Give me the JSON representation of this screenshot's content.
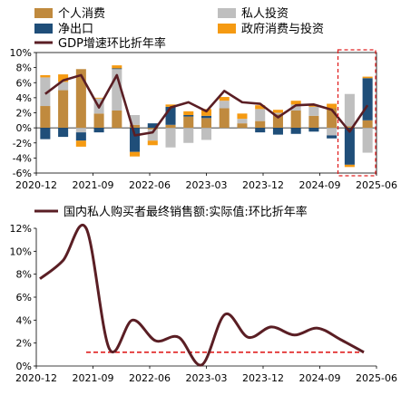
{
  "colors": {
    "consumption": "#C08A3E",
    "private_investment": "#BFBFBF",
    "net_exports": "#1F4E79",
    "government": "#F59A12",
    "gdp_line": "#5A1E24",
    "highlight": "#E02020"
  },
  "chart_data": [
    {
      "type": "bar",
      "stacked": true,
      "legend": [
        {
          "key": "consumption",
          "label": "个人消费"
        },
        {
          "key": "private_investment",
          "label": "私人投资"
        },
        {
          "key": "net_exports",
          "label": "净出口"
        },
        {
          "key": "government",
          "label": "政府消费与投资"
        },
        {
          "key": "gdp",
          "label": "GDP增速环比折年率"
        }
      ],
      "ylim": [
        -6,
        10
      ],
      "yticks": [
        "-6%",
        "-4%",
        "-2%",
        "0%",
        "2%",
        "4%",
        "6%",
        "8%",
        "10%"
      ],
      "xticks": [
        "2020-12",
        "2021-09",
        "2022-06",
        "2023-03",
        "2023-12",
        "2024-09",
        "2025-06"
      ],
      "series": [
        {
          "key": "consumption",
          "values": [
            2.9,
            5.0,
            7.8,
            1.9,
            2.3,
            0.4,
            -0.2,
            0.4,
            1.5,
            1.3,
            2.6,
            0.6,
            0.9,
            1.8,
            2.3,
            1.6,
            2.6,
            0.2,
            1.0
          ]
        },
        {
          "key": "private_investment",
          "values": [
            3.8,
            1.1,
            -0.6,
            2.0,
            5.5,
            1.3,
            -1.5,
            -2.6,
            -2.0,
            -1.6,
            1.0,
            0.6,
            1.6,
            0.2,
            0.8,
            1.2,
            -1.0,
            4.3,
            -3.3
          ]
        },
        {
          "key": "net_exports",
          "values": [
            -1.5,
            -1.2,
            -1.1,
            -0.6,
            0.1,
            -3.2,
            0.6,
            2.4,
            0.2,
            0.3,
            0.0,
            0.0,
            -0.6,
            -0.9,
            -0.8,
            -0.5,
            -0.4,
            -4.9,
            5.6
          ]
        },
        {
          "key": "government",
          "values": [
            0.3,
            1.0,
            -0.8,
            0.1,
            0.4,
            -0.6,
            -0.6,
            0.3,
            0.5,
            0.9,
            0.5,
            0.7,
            0.5,
            0.4,
            0.5,
            0.2,
            0.6,
            -0.3,
            0.2
          ]
        }
      ],
      "line": {
        "key": "gdp",
        "values": [
          4.5,
          6.3,
          7.0,
          2.7,
          7.0,
          -1.0,
          -0.6,
          2.7,
          3.4,
          2.2,
          4.9,
          3.4,
          3.2,
          1.4,
          3.0,
          3.1,
          2.4,
          -0.5,
          3.0
        ]
      },
      "highlight_last_n": 2
    },
    {
      "type": "line",
      "title": "国内私人购买者最终销售额:实际值:环比折年率",
      "ylim": [
        0,
        12
      ],
      "yticks": [
        "0%",
        "2%",
        "4%",
        "6%",
        "8%",
        "10%",
        "12%"
      ],
      "xticks": [
        "2020-12",
        "2021-09",
        "2022-06",
        "2023-03",
        "2023-12",
        "2024-09",
        "2025-06"
      ],
      "values": [
        7.6,
        9.2,
        12.0,
        1.5,
        4.0,
        2.2,
        2.5,
        0.1,
        4.5,
        2.5,
        3.4,
        2.7,
        3.3,
        2.3,
        1.2
      ],
      "reference_value": 1.2
    }
  ]
}
